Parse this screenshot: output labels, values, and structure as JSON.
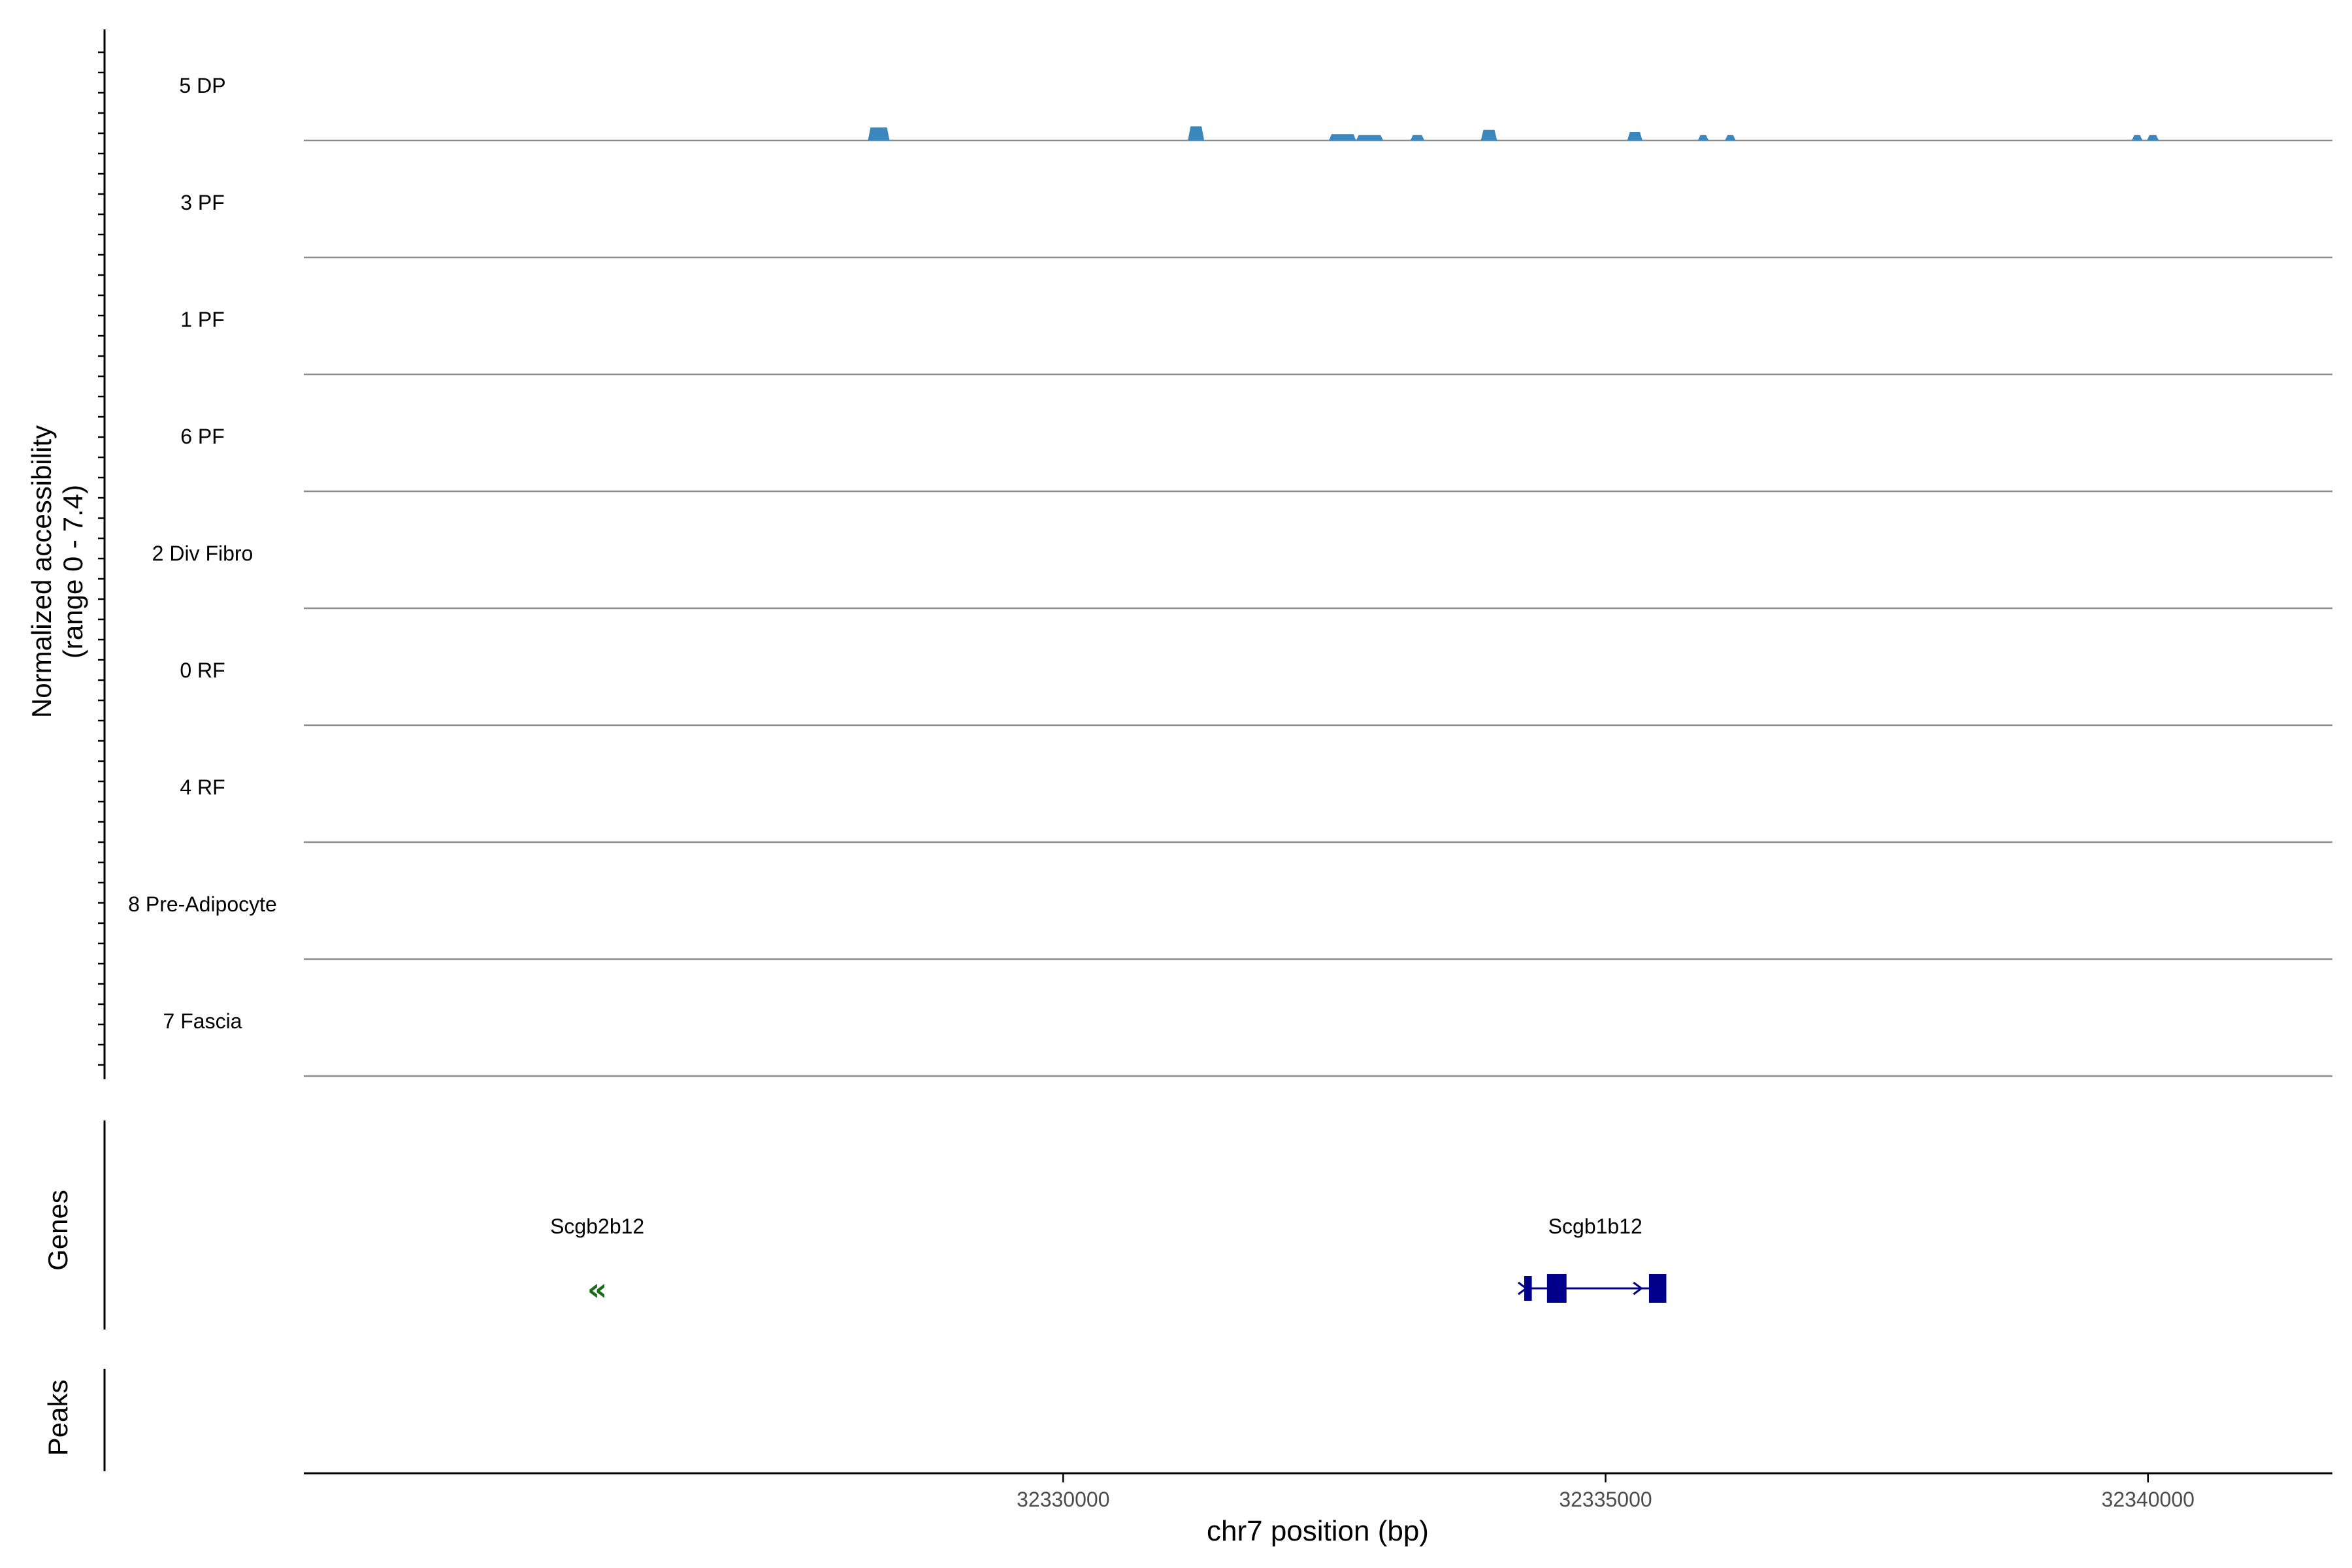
{
  "chart_data": {
    "type": "coverage",
    "title": "",
    "xlabel": "chr7 position (bp)",
    "ylabel": "Normalized accessibility\n(range 0 - 7.4)",
    "xlim": [
      32323000,
      32341700
    ],
    "ylim": [
      0,
      7.4
    ],
    "x_ticks": [
      {
        "value": 32330000,
        "label": "32330000"
      },
      {
        "value": 32335000,
        "label": "32335000"
      },
      {
        "value": 32340000,
        "label": "32340000"
      }
    ],
    "tracks": [
      {
        "name": "5 DP",
        "color": "#3A87BE",
        "peaks": [
          [
            32328200,
            32328400,
            0.92
          ],
          [
            32331150,
            32331300,
            1.0
          ],
          [
            32332450,
            32332700,
            0.45
          ],
          [
            32332700,
            32332950,
            0.38
          ],
          [
            32333200,
            32333330,
            0.38
          ],
          [
            32335200,
            32335340,
            0.6
          ],
          [
            32333850,
            32334000,
            0.75
          ],
          [
            32335850,
            32335950,
            0.38
          ],
          [
            32336100,
            32336200,
            0.38
          ],
          [
            32339850,
            32339950,
            0.38
          ],
          [
            32339990,
            32340100,
            0.38
          ]
        ]
      },
      {
        "name": "3 PF",
        "color": "#0E6B3A",
        "peaks": [
          [
            32330000,
            32330000,
            0
          ]
        ]
      },
      {
        "name": "1 PF",
        "color": "#72C16A",
        "peaks": [
          [
            32330000,
            32330000,
            0
          ]
        ]
      },
      {
        "name": "6 PF",
        "color": "#23A05A",
        "peaks": [
          [
            32330000,
            32330000,
            0
          ]
        ]
      },
      {
        "name": "2 Div Fibro",
        "color": "#8C5210",
        "peaks": [
          [
            32330000,
            32330000,
            0
          ]
        ]
      },
      {
        "name": "0 RF",
        "color": "#EE7049",
        "peaks": [
          [
            32330000,
            32330000,
            0
          ]
        ]
      },
      {
        "name": "4 RF",
        "color": "#D8352B",
        "peaks": [
          [
            32330000,
            32330000,
            0
          ]
        ]
      },
      {
        "name": "8 Pre-Adipocyte",
        "color": "#B0112F",
        "peaks": [
          [
            32330000,
            32330000,
            0
          ]
        ]
      },
      {
        "name": "7 Fascia",
        "color": "#950856",
        "peaks": [
          [
            32330000,
            32330000,
            0
          ]
        ]
      }
    ],
    "genes": [
      {
        "name": "Scgb2b12",
        "strand": "-",
        "start": 32325650,
        "end": 32325760,
        "color": "#1A6B1A",
        "exons": []
      },
      {
        "name": "Scgb1b12",
        "strand": "+",
        "start": 32334250,
        "end": 32335560,
        "color": "#00008B",
        "exons": [
          [
            32334250,
            32334320
          ],
          [
            32334460,
            32334640
          ],
          [
            32335400,
            32335560
          ]
        ]
      }
    ],
    "side_labels": [
      "Genes",
      "Peaks"
    ]
  }
}
